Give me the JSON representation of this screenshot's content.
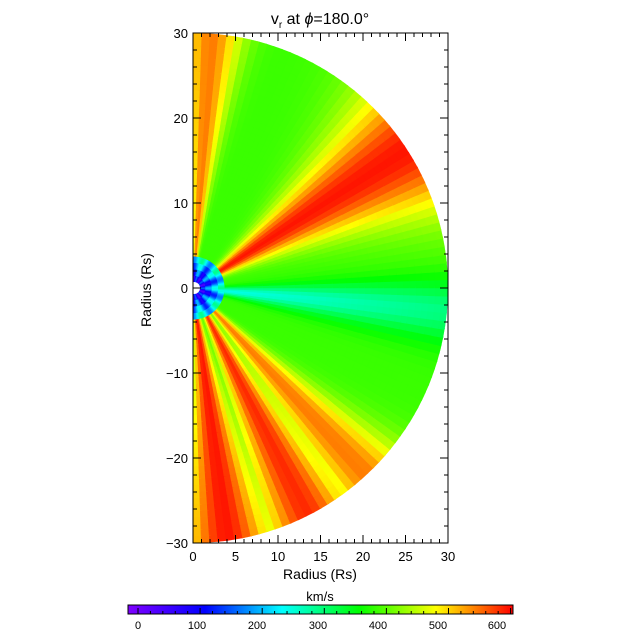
{
  "chart_data": {
    "type": "heatmap",
    "title_prefix": "v",
    "title_subscript": "r",
    "title_mid": " at ",
    "title_phi": "ϕ",
    "title_value": "=180.0°",
    "xlabel": "Radius (Rs)",
    "ylabel": "Radius (Rs)",
    "xlim": [
      0,
      30
    ],
    "ylim": [
      -30,
      30
    ],
    "x_ticks": [
      "0",
      "5",
      "10",
      "15",
      "20",
      "25",
      "30"
    ],
    "y_ticks": [
      "30",
      "20",
      "10",
      "0",
      "−10",
      "−20",
      "−30"
    ],
    "domain": "half-disk of radius 30 Rs (x ≥ 0), white inner body near origin",
    "colorbar": {
      "label": "km/s",
      "ticks": [
        "0",
        "100",
        "200",
        "300",
        "400",
        "500",
        "600"
      ],
      "range": [
        0,
        620
      ],
      "colors": [
        "#7f00ff",
        "#0000ff",
        "#00ffff",
        "#00ff00",
        "#ffff00",
        "#ff0000"
      ]
    },
    "streams": [
      {
        "angle_deg": 86,
        "width_deg": 7,
        "peak_kms": 560
      },
      {
        "angle_deg": 33,
        "width_deg": 15,
        "peak_kms": 610
      },
      {
        "angle_deg": -47,
        "width_deg": 9,
        "peak_kms": 560
      },
      {
        "angle_deg": -63,
        "width_deg": 10,
        "peak_kms": 600
      },
      {
        "angle_deg": -82,
        "width_deg": 10,
        "peak_kms": 610
      }
    ],
    "slow_band": {
      "angle_deg": -5,
      "width_deg": 7,
      "min_kms": 250
    },
    "background_kms": 400
  }
}
